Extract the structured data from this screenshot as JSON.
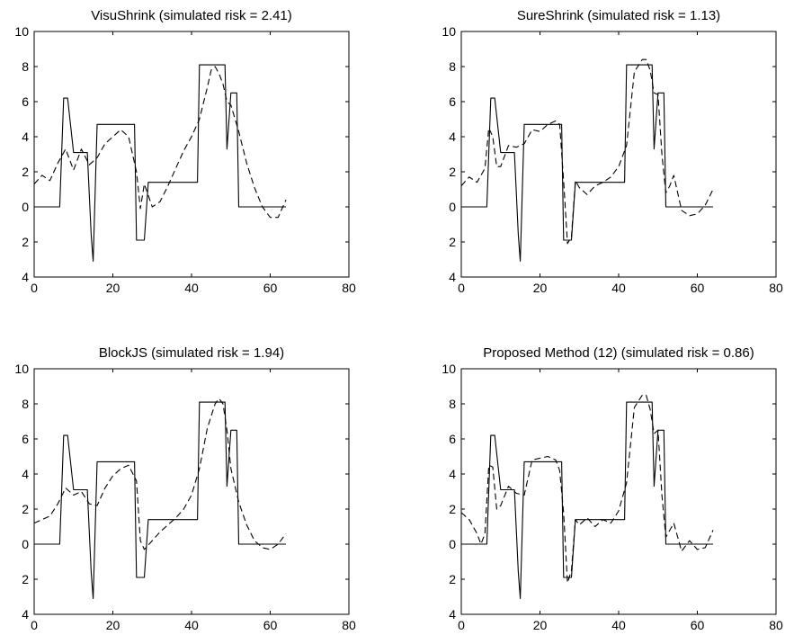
{
  "chart_data": [
    {
      "type": "line",
      "title": "VisuShrink (simulated risk = 2.41)",
      "xlabel": "",
      "ylabel": "",
      "xlim": [
        0,
        80
      ],
      "ylim": [
        -4,
        10
      ],
      "xticks": [
        0,
        20,
        40,
        60,
        80
      ],
      "xtick_labels": [
        "0",
        "20",
        "40",
        "60",
        "80"
      ],
      "yticks": [
        10,
        8,
        6,
        4,
        2,
        0,
        -2,
        -4
      ],
      "ytick_labels": [
        "10",
        "8",
        "6",
        "4",
        "2",
        "0",
        "2",
        "4"
      ],
      "grid": false,
      "series": [
        {
          "style": "solid",
          "color": "#000000",
          "x": [
            0,
            6.5,
            7.5,
            8.5,
            10,
            11,
            13.5,
            14.5,
            15,
            16,
            25.5,
            26,
            28,
            29,
            41.5,
            42,
            48.5,
            49,
            50,
            51.5,
            52,
            64
          ],
          "y": [
            0,
            0,
            6.2,
            6.2,
            3.1,
            3.1,
            3.1,
            -1.6,
            -3.1,
            4.7,
            4.7,
            -1.9,
            -1.9,
            1.4,
            1.4,
            8.1,
            8.1,
            3.3,
            6.5,
            6.5,
            0,
            0
          ]
        },
        {
          "style": "dashed",
          "color": "#000000",
          "x": [
            0,
            2,
            4,
            6,
            8,
            10,
            12,
            14,
            16,
            18,
            20,
            22,
            24,
            26,
            27,
            28,
            30,
            32,
            34,
            36,
            38,
            40,
            42,
            44,
            45,
            46,
            47,
            48,
            49,
            50,
            52,
            54,
            56,
            58,
            60,
            62,
            64
          ],
          "y": [
            1.3,
            1.8,
            1.5,
            2.5,
            3.3,
            2.1,
            3.3,
            2.4,
            2.8,
            3.6,
            4.0,
            4.4,
            4.0,
            2.0,
            -0.1,
            1.3,
            0.0,
            0.3,
            1.2,
            2.2,
            3.2,
            4.0,
            5.0,
            6.8,
            7.8,
            8.0,
            7.6,
            7.0,
            6.0,
            5.8,
            4.3,
            2.5,
            1.1,
            0.0,
            -0.6,
            -0.6,
            0.4
          ]
        }
      ]
    },
    {
      "type": "line",
      "title": "SureShrink (simulated risk = 1.13)",
      "xlabel": "",
      "ylabel": "",
      "xlim": [
        0,
        80
      ],
      "ylim": [
        -4,
        10
      ],
      "xticks": [
        0,
        20,
        40,
        60,
        80
      ],
      "xtick_labels": [
        "0",
        "20",
        "40",
        "60",
        "80"
      ],
      "yticks": [
        10,
        8,
        6,
        4,
        2,
        0,
        -2,
        -4
      ],
      "ytick_labels": [
        "10",
        "8",
        "6",
        "4",
        "2",
        "0",
        "2",
        "4"
      ],
      "grid": false,
      "series": [
        {
          "style": "solid",
          "color": "#000000",
          "x": [
            0,
            6.5,
            7.5,
            8.5,
            10,
            11,
            13.5,
            14.5,
            15,
            16,
            25.5,
            26,
            28,
            29,
            41.5,
            42,
            48.5,
            49,
            50,
            51.5,
            52,
            64
          ],
          "y": [
            0,
            0,
            6.2,
            6.2,
            3.1,
            3.1,
            3.1,
            -1.6,
            -3.1,
            4.7,
            4.7,
            -1.9,
            -1.9,
            1.4,
            1.4,
            8.1,
            8.1,
            3.3,
            6.5,
            6.5,
            0,
            0
          ]
        },
        {
          "style": "dashed",
          "color": "#000000",
          "x": [
            0,
            2,
            4,
            6,
            7,
            8,
            9,
            10,
            12,
            14,
            16,
            18,
            20,
            22,
            24,
            25,
            26,
            27,
            28,
            29,
            30,
            32,
            34,
            36,
            38,
            40,
            42,
            44,
            46,
            47,
            48,
            49,
            50,
            51,
            52,
            53,
            54,
            56,
            58,
            60,
            62,
            64
          ],
          "y": [
            1.2,
            1.7,
            1.4,
            2.2,
            4.5,
            4.0,
            2.3,
            2.3,
            3.5,
            3.4,
            3.6,
            4.4,
            4.3,
            4.7,
            4.9,
            4.7,
            1.5,
            -2.1,
            -1.7,
            1.5,
            1.1,
            0.7,
            1.2,
            1.4,
            1.7,
            2.3,
            3.5,
            7.7,
            8.4,
            8.4,
            7.8,
            6.5,
            6.4,
            3.0,
            0.8,
            1.2,
            1.8,
            -0.2,
            -0.5,
            -0.4,
            0.1,
            1.0
          ]
        }
      ]
    },
    {
      "type": "line",
      "title": "BlockJS (simulated risk = 1.94)",
      "xlabel": "",
      "ylabel": "",
      "xlim": [
        0,
        80
      ],
      "ylim": [
        -4,
        10
      ],
      "xticks": [
        0,
        20,
        40,
        60,
        80
      ],
      "xtick_labels": [
        "0",
        "20",
        "40",
        "60",
        "80"
      ],
      "yticks": [
        10,
        8,
        6,
        4,
        2,
        0,
        -2,
        -4
      ],
      "ytick_labels": [
        "10",
        "8",
        "6",
        "4",
        "2",
        "0",
        "2",
        "4"
      ],
      "grid": false,
      "series": [
        {
          "style": "solid",
          "color": "#000000",
          "x": [
            0,
            6.5,
            7.5,
            8.5,
            10,
            11,
            13.5,
            14.5,
            15,
            16,
            25.5,
            26,
            28,
            29,
            41.5,
            42,
            48.5,
            49,
            50,
            51.5,
            52,
            64
          ],
          "y": [
            0,
            0,
            6.2,
            6.2,
            3.1,
            3.1,
            3.1,
            -1.6,
            -3.1,
            4.7,
            4.7,
            -1.9,
            -1.9,
            1.4,
            1.4,
            8.1,
            8.1,
            3.3,
            6.5,
            6.5,
            0,
            0
          ]
        },
        {
          "style": "dashed",
          "color": "#000000",
          "x": [
            0,
            2,
            4,
            6,
            8,
            10,
            12,
            14,
            16,
            18,
            20,
            22,
            24,
            26,
            27,
            28,
            30,
            32,
            34,
            36,
            38,
            40,
            42,
            44,
            46,
            47,
            48,
            49,
            50,
            52,
            54,
            56,
            58,
            60,
            62,
            64
          ],
          "y": [
            1.2,
            1.4,
            1.6,
            2.3,
            3.2,
            2.8,
            3.0,
            2.3,
            2.2,
            3.2,
            3.9,
            4.3,
            4.5,
            3.6,
            0.2,
            -0.3,
            0.2,
            0.7,
            1.1,
            1.5,
            2.0,
            2.8,
            4.3,
            6.6,
            8.0,
            8.3,
            8.0,
            6.5,
            4.3,
            2.4,
            1.1,
            0.2,
            -0.2,
            -0.3,
            0.0,
            0.6
          ]
        }
      ]
    },
    {
      "type": "line",
      "title": "Proposed Method (12) (simulated risk = 0.86)",
      "xlabel": "",
      "ylabel": "",
      "xlim": [
        0,
        80
      ],
      "ylim": [
        -4,
        10
      ],
      "xticks": [
        0,
        20,
        40,
        60,
        80
      ],
      "xtick_labels": [
        "0",
        "20",
        "40",
        "60",
        "80"
      ],
      "yticks": [
        10,
        8,
        6,
        4,
        2,
        0,
        -2,
        -4
      ],
      "ytick_labels": [
        "10",
        "8",
        "6",
        "4",
        "2",
        "0",
        "2",
        "4"
      ],
      "grid": false,
      "series": [
        {
          "style": "solid",
          "color": "#000000",
          "x": [
            0,
            6.5,
            7.5,
            8.5,
            10,
            11,
            13.5,
            14.5,
            15,
            16,
            25.5,
            26,
            28,
            29,
            41.5,
            42,
            48.5,
            49,
            50,
            51.5,
            52,
            64
          ],
          "y": [
            0,
            0,
            6.2,
            6.2,
            3.1,
            3.1,
            3.1,
            -1.6,
            -3.1,
            4.7,
            4.7,
            -1.9,
            -1.9,
            1.4,
            1.4,
            8.1,
            8.1,
            3.3,
            6.5,
            6.5,
            0,
            0
          ]
        },
        {
          "style": "dashed",
          "color": "#000000",
          "x": [
            0,
            2,
            4,
            5,
            6,
            7,
            8,
            9,
            10,
            12,
            14,
            16,
            18,
            20,
            22,
            24,
            25,
            26,
            27,
            28,
            29,
            30,
            32,
            34,
            36,
            38,
            40,
            42,
            44,
            46,
            47,
            48,
            49,
            50,
            51,
            52,
            54,
            56,
            58,
            60,
            62,
            64
          ],
          "y": [
            1.8,
            1.4,
            0.6,
            0.0,
            0.6,
            4.5,
            4.4,
            2.0,
            2.2,
            3.3,
            2.9,
            2.8,
            4.8,
            4.9,
            5.0,
            4.8,
            4.2,
            1.8,
            -2.2,
            -1.5,
            1.4,
            1.1,
            1.5,
            1.0,
            1.4,
            1.2,
            1.9,
            3.5,
            7.8,
            8.5,
            8.5,
            7.7,
            6.3,
            6.5,
            2.8,
            0.4,
            1.2,
            -0.4,
            0.2,
            -0.3,
            -0.2,
            0.8
          ]
        }
      ]
    }
  ]
}
